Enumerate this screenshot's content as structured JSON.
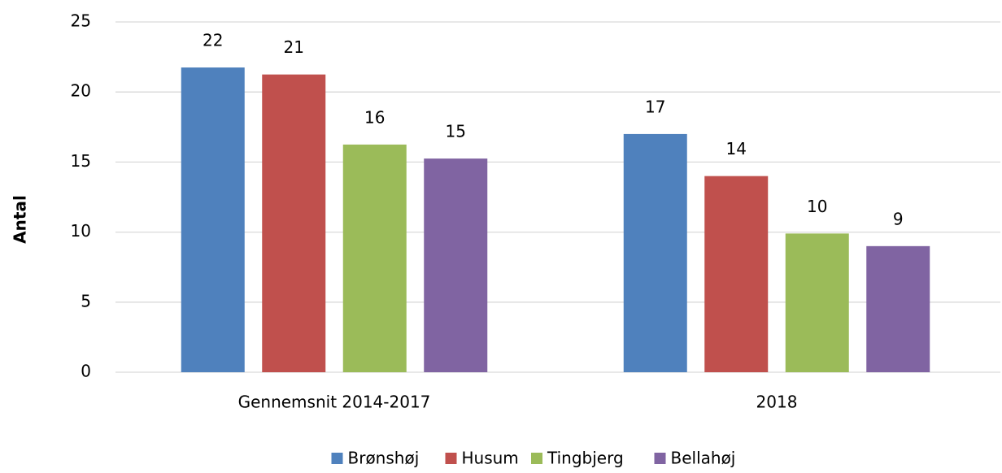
{
  "chart_data": {
    "type": "bar",
    "y_label": "Antal",
    "categories": [
      "Gennemsnit 2014-2017",
      "2018"
    ],
    "series": [
      {
        "name": "Brønshøj",
        "color": "#4f81bd",
        "values": [
          21.75,
          17
        ],
        "value_labels": [
          "22",
          "17"
        ]
      },
      {
        "name": "Husum",
        "color": "#c0504d",
        "values": [
          21.25,
          14
        ],
        "value_labels": [
          "21",
          "14"
        ]
      },
      {
        "name": "Tingbjerg",
        "color": "#9bbb59",
        "values": [
          16.25,
          9.9
        ],
        "value_labels": [
          "16",
          "10"
        ]
      },
      {
        "name": "Bellahøj",
        "color": "#8064a2",
        "values": [
          15.25,
          9
        ],
        "value_labels": [
          "15",
          "9"
        ]
      }
    ],
    "ylim": [
      0,
      25
    ],
    "yticks": [
      0,
      5,
      10,
      15,
      20,
      25
    ],
    "grid": true,
    "legend": "bottom"
  }
}
